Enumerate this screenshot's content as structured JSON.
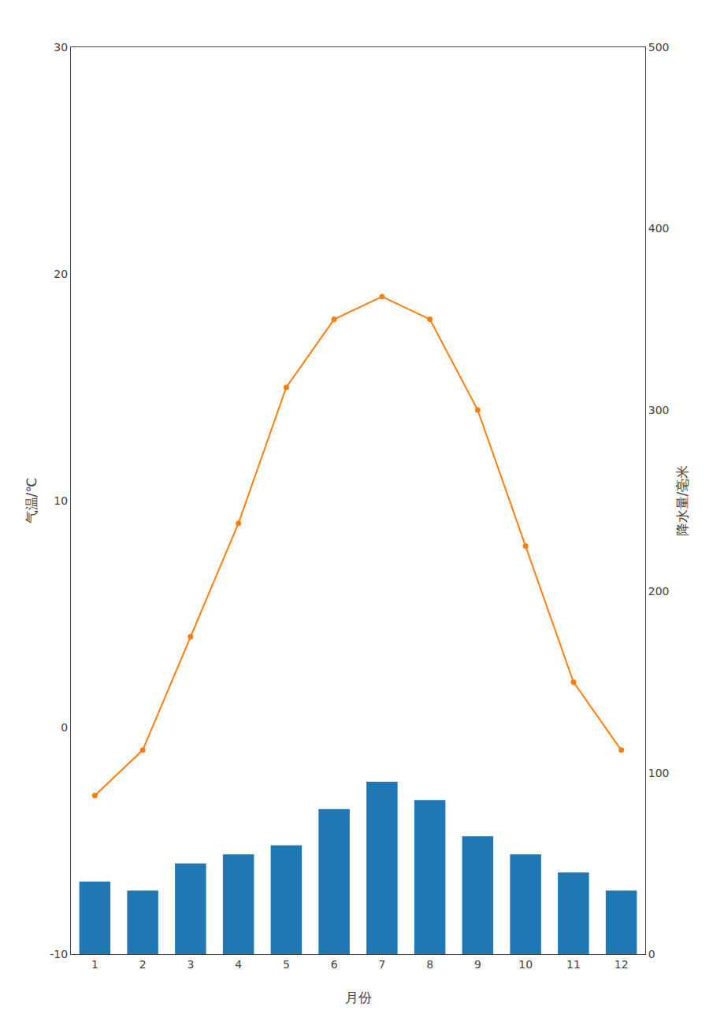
{
  "chart_data": {
    "type": "bar",
    "x": [
      1,
      2,
      3,
      4,
      5,
      6,
      7,
      8,
      9,
      10,
      11,
      12
    ],
    "x_label": "月份",
    "y_label": "气温/℃",
    "y2_label": "降水量/毫米",
    "xlim": [
      0.5,
      12.5
    ],
    "xticks": [
      1,
      2,
      3,
      4,
      5,
      6,
      7,
      8,
      9,
      10,
      11,
      12
    ],
    "ylim": [
      -10,
      30
    ],
    "yticks": [
      -10,
      0,
      10,
      20,
      30
    ],
    "y2lim": [
      0,
      500
    ],
    "y2ticks": [
      0,
      100,
      200,
      300,
      400,
      500
    ],
    "grid": false,
    "series": [
      {
        "type": "bar",
        "axis": "y2",
        "values": [
          40,
          35,
          50,
          55,
          60,
          80,
          95,
          85,
          65,
          55,
          45,
          35
        ]
      },
      {
        "type": "line",
        "marker": "circle",
        "values": [
          -3,
          -1,
          4,
          9,
          15,
          18,
          19,
          18,
          14,
          8,
          2,
          -1
        ]
      }
    ]
  }
}
